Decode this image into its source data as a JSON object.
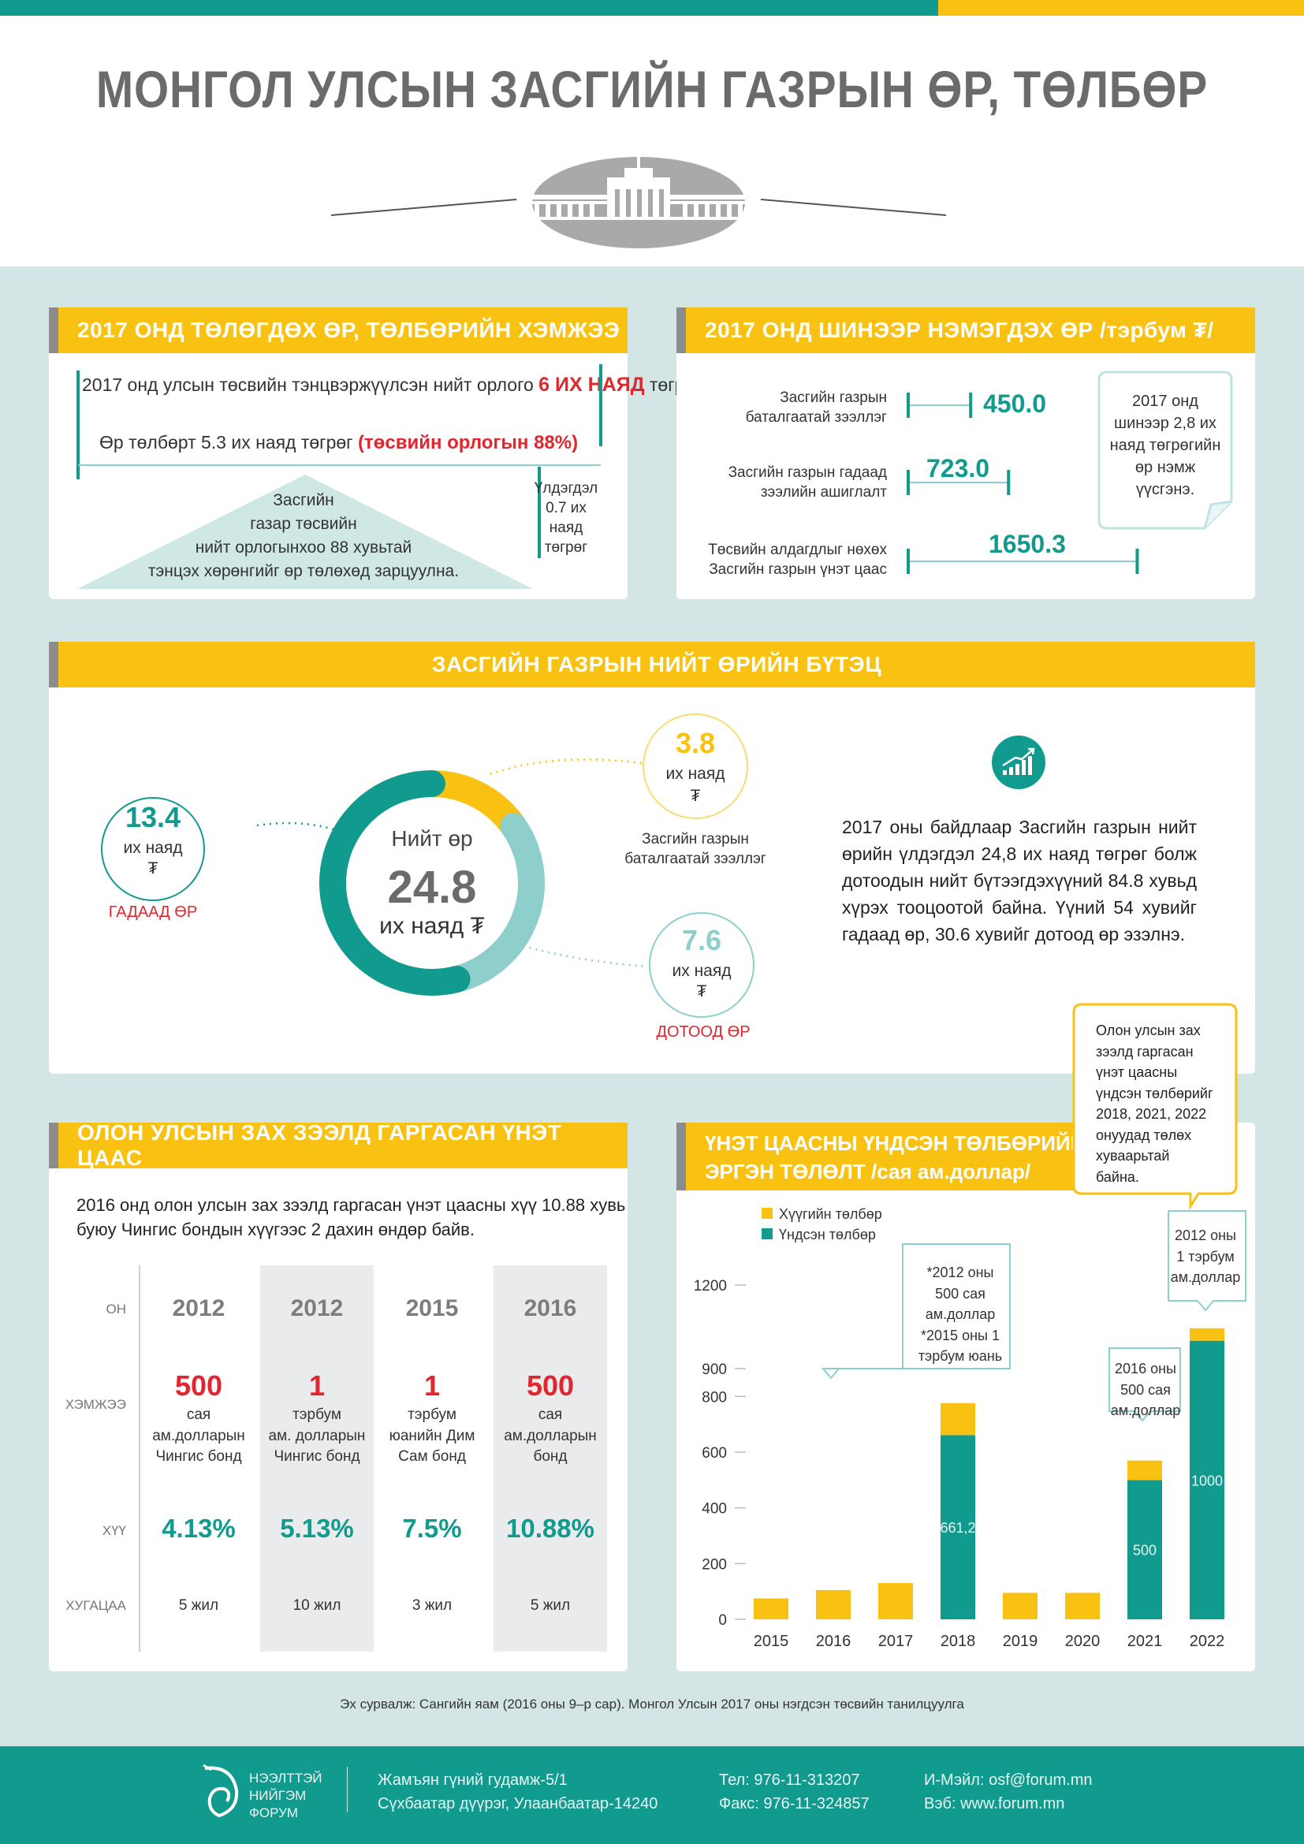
{
  "title": "МОНГОЛ УЛСЫН ЗАСГИЙН ГАЗРЫН ӨР, ТӨЛБӨР",
  "section1": {
    "heading": "2017 ОНД ТӨЛӨГДӨХ ӨР, ТӨЛБӨРИЙН ХЭМЖЭЭ",
    "line1_a": "2017 онд улсын төсвийн тэнцвэржүүлсэн нийт орлого",
    "line1_b": "6 ИХ НАЯД",
    "line1_c": "төгрөг",
    "line2_a": "Өр төлбөрт 5.3 их наяд төгрөг",
    "line2_b": "(төсвийн орлогын 88%)",
    "triangle_text": [
      "Засгийн",
      "газар төсвийн",
      "нийт орлогынхоо 88 хувьтай",
      "тэнцэх хөрөнгийг өр төлөхөд зарцуулна."
    ],
    "remaining": [
      "Үлдэгдэл",
      "0.7 их",
      "наяд",
      "төгрөг"
    ]
  },
  "section2": {
    "heading": "2017 ОНД ШИНЭЭР НЭМЭГДЭХ ӨР /тэрбум ₮/",
    "items": [
      {
        "label": [
          "Засгийн газрын",
          "баталгаатай зээллэг"
        ],
        "value": "450.0",
        "num": 450.0
      },
      {
        "label": [
          "Засгийн газрын гадаад",
          "зээлийн ашиглалт"
        ],
        "value": "723.0",
        "num": 723.0
      },
      {
        "label": [
          "Төсвийн алдагдлыг нөхөх",
          "Засгийн газрын үнэт цаас"
        ],
        "value": "1650.3",
        "num": 1650.3
      }
    ],
    "note": [
      "2017 онд",
      "шинээр 2,8 их",
      "наяд төгрөгийн",
      "өр нэмж",
      "үүсгэнэ."
    ]
  },
  "section3": {
    "heading": "ЗАСГИЙН ГАЗРЫН НИЙТ ӨРИЙН БҮТЭЦ",
    "center_label": "Нийт өр",
    "center_value": "24.8",
    "center_unit": "их наяд ₮",
    "external": {
      "value": "13.4",
      "unit": "их наяд",
      "currency": "₮",
      "label": "ГАДААД ӨР"
    },
    "guaranteed": {
      "value": "3.8",
      "unit": "их наяд",
      "currency": "₮",
      "label": [
        "Засгийн газрын",
        "баталгаатай зээллэг"
      ]
    },
    "domestic": {
      "value": "7.6",
      "unit": "их наяд",
      "currency": "₮",
      "label": "ДОТООД ӨР"
    },
    "paragraph": "2017 оны байдлаар Засгийн газрын нийт өрийн үлдэгдэл 24,8 их наяд төгрөг болж дотоодын нийт бүтээгдэхүүний 84.8 хувьд хүрэх тооцоотой байна. Үүний 54 хувийг гадаад өр, 30.6 хувийг дотоод өр эзэлнэ.",
    "colors": {
      "external": "#119a8e",
      "guaranteed": "#f9c212",
      "domestic": "#8fcfcb"
    }
  },
  "section4": {
    "heading": "ОЛОН УЛСЫН ЗАХ ЗЭЭЛД ГАРГАСАН ҮНЭТ ЦААС",
    "intro": [
      "2016 онд олон улсын зах зээлд гаргасан үнэт цаасны хүү 10.88 хувь",
      "буюу Чингис бондын хүүгээс 2 дахин өндөр байв."
    ],
    "row_labels": {
      "year": "ОН",
      "amount": "ХЭМЖЭЭ",
      "rate": "ХҮҮ",
      "term": "ХУГАЦАА"
    },
    "columns": [
      {
        "year": "2012",
        "amount": "500",
        "desc": [
          "сая",
          "ам.долларын",
          "Чингис бонд"
        ],
        "rate": "4.13%",
        "term": "5 жил"
      },
      {
        "year": "2012",
        "amount": "1",
        "desc": [
          "тэрбум",
          "ам. долларын",
          "Чингис бонд"
        ],
        "rate": "5.13%",
        "term": "10 жил"
      },
      {
        "year": "2015",
        "amount": "1",
        "desc": [
          "тэрбум",
          "юанийн Дим",
          "Сам бонд"
        ],
        "rate": "7.5%",
        "term": "3 жил"
      },
      {
        "year": "2016",
        "amount": "500",
        "desc": [
          "сая",
          "ам.долларын",
          "бонд"
        ],
        "rate": "10.88%",
        "term": "5 жил"
      }
    ]
  },
  "section5": {
    "heading": [
      "ҮНЭТ ЦААСНЫ ҮНДСЭН ТӨЛБӨРИЙН",
      "ЭРГЭН ТӨЛӨЛТ  /сая ам.доллар/"
    ],
    "callout_top": [
      "Олон улсын зах",
      "зээлд гаргасан",
      "үнэт цаасны",
      "үндсэн төлбөрийг",
      "2018, 2021, 2022",
      "онуудад төлөх",
      "хуваарьтай",
      "байна."
    ],
    "callout_2018": [
      "*2012 оны",
      "500 сая",
      "ам.доллар",
      "*2015 оны 1",
      "тэрбум юань"
    ],
    "callout_2021": [
      "2016 оны",
      "500 сая",
      "ам.доллар"
    ],
    "callout_2022": [
      "2012 оны",
      "1 тэрбум",
      "ам.доллар"
    ],
    "bar_labels": {
      "2018": "661,2",
      "2021": "500",
      "2022": "1000"
    }
  },
  "chart_data": {
    "type": "bar",
    "stacked": true,
    "categories": [
      "2015",
      "2016",
      "2017",
      "2018",
      "2019",
      "2020",
      "2021",
      "2022"
    ],
    "series": [
      {
        "name": "Үндсэн төлбөр",
        "color": "#119a8e",
        "values": [
          0,
          0,
          0,
          661.2,
          0,
          0,
          500,
          1000
        ]
      },
      {
        "name": "Хүүгийн төлбөр",
        "color": "#f9c212",
        "values": [
          75,
          105,
          130,
          115,
          95,
          95,
          70,
          45
        ]
      }
    ],
    "yticks": [
      0,
      200,
      400,
      600,
      800,
      900,
      1200
    ],
    "ylim": [
      0,
      1200
    ],
    "legend": "top-left"
  },
  "source": "Эх сурвалж: Сангийн яам (2016 оны 9–р сар). Монгол Улсын 2017 оны нэгдсэн төсвийн танилцуулга",
  "footer": {
    "logo": [
      "НЭЭЛТТЭЙ",
      "НИЙГЭМ",
      "ФОРУМ"
    ],
    "address": [
      "Жамъян гүний гудамж-5/1",
      "Сүхбаатар дүүрэг, Улаанбаатар-14240"
    ],
    "phone": [
      "Тел: 976-11-313207",
      "Факс: 976-11-324857"
    ],
    "web": [
      "И-Мэйл: osf@forum.mn",
      "Вэб: www.forum.mn"
    ]
  }
}
